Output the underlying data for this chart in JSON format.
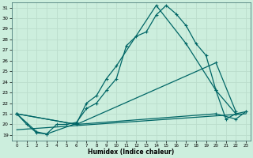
{
  "xlabel": "Humidex (Indice chaleur)",
  "bg_color": "#cceedd",
  "grid_color": "#aaddcc",
  "line_color": "#006666",
  "ylim": [
    18.5,
    31.5
  ],
  "xlim": [
    -0.5,
    23.5
  ],
  "yticks": [
    19,
    20,
    21,
    22,
    23,
    24,
    25,
    26,
    27,
    28,
    29,
    30,
    31
  ],
  "xticks": [
    0,
    1,
    2,
    3,
    4,
    5,
    6,
    7,
    8,
    9,
    10,
    11,
    12,
    13,
    14,
    15,
    16,
    17,
    18,
    19,
    20,
    21,
    22,
    23
  ],
  "line1_x": [
    0,
    1,
    2,
    3,
    4,
    5,
    6,
    7,
    8,
    9,
    10,
    11,
    12,
    13,
    14,
    15,
    16,
    17,
    18,
    19,
    20,
    21,
    22,
    23
  ],
  "line1_y": [
    21,
    20,
    19.2,
    19.1,
    20.0,
    20.0,
    20.2,
    21.5,
    22.0,
    23.2,
    24.3,
    27.4,
    28.3,
    28.7,
    30.3,
    31.2,
    30.4,
    29.3,
    27.6,
    26.5,
    23.2,
    20.5,
    21.0,
    21.2
  ],
  "line2_x": [
    0,
    2,
    3,
    6,
    7,
    8,
    9,
    10,
    14,
    17,
    20,
    22
  ],
  "line2_y": [
    21,
    19.3,
    19.1,
    20.1,
    22.0,
    22.7,
    24.3,
    25.5,
    31.2,
    27.6,
    23.2,
    21.0
  ],
  "line3_x": [
    0,
    6,
    20,
    22
  ],
  "line3_y": [
    21,
    20.0,
    25.8,
    21.2
  ],
  "line4_x": [
    0,
    6,
    20,
    22,
    23
  ],
  "line4_y": [
    21,
    20.0,
    21.0,
    20.5,
    21.2
  ],
  "line5_x": [
    0,
    23
  ],
  "line5_y": [
    19.5,
    21.0
  ]
}
